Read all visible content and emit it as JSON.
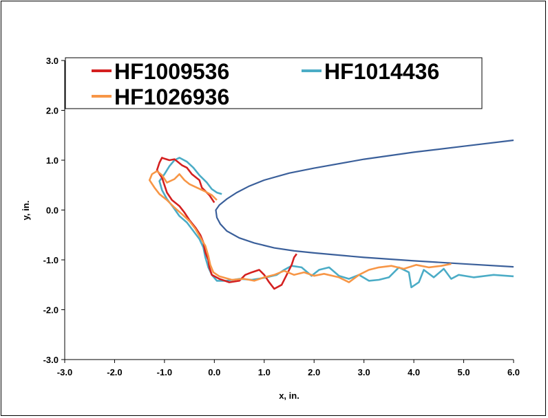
{
  "chart_data": {
    "type": "line",
    "xlabel": "x, in.",
    "ylabel": "y, in.",
    "xlim": [
      -3.0,
      6.0
    ],
    "ylim": [
      -3.0,
      3.0
    ],
    "xticks": [
      "-3.0",
      "-2.0",
      "-1.0",
      "0.0",
      "1.0",
      "2.0",
      "3.0",
      "4.0",
      "5.0",
      "6.0"
    ],
    "yticks": [
      "-3.0",
      "-2.0",
      "-1.0",
      "0.0",
      "1.0",
      "2.0",
      "3.0"
    ],
    "grid": false,
    "legend_position": "top",
    "series": [
      {
        "name": "HF1009536",
        "color": "#d42020",
        "points": [
          [
            0.0,
            0.15
          ],
          [
            -0.1,
            0.3
          ],
          [
            -0.25,
            0.45
          ],
          [
            -0.3,
            0.6
          ],
          [
            -0.45,
            0.72
          ],
          [
            -0.55,
            0.85
          ],
          [
            -0.65,
            0.9
          ],
          [
            -0.75,
            0.98
          ],
          [
            -0.8,
            1.02
          ],
          [
            -0.9,
            1.0
          ],
          [
            -1.0,
            1.03
          ],
          [
            -1.05,
            1.05
          ],
          [
            -1.1,
            0.95
          ],
          [
            -1.15,
            0.8
          ],
          [
            -1.05,
            0.65
          ],
          [
            -1.0,
            0.5
          ],
          [
            -0.95,
            0.35
          ],
          [
            -0.85,
            0.2
          ],
          [
            -0.7,
            0.08
          ],
          [
            -0.6,
            -0.05
          ],
          [
            -0.5,
            -0.2
          ],
          [
            -0.38,
            -0.35
          ],
          [
            -0.28,
            -0.5
          ],
          [
            -0.22,
            -0.65
          ],
          [
            -0.18,
            -0.85
          ],
          [
            -0.12,
            -1.0
          ],
          [
            -0.1,
            -1.15
          ],
          [
            -0.05,
            -1.3
          ],
          [
            0.1,
            -1.38
          ],
          [
            0.3,
            -1.45
          ],
          [
            0.5,
            -1.42
          ],
          [
            0.62,
            -1.3
          ],
          [
            0.75,
            -1.25
          ],
          [
            0.9,
            -1.2
          ],
          [
            1.0,
            -1.3
          ],
          [
            1.1,
            -1.45
          ],
          [
            1.2,
            -1.58
          ],
          [
            1.35,
            -1.5
          ],
          [
            1.45,
            -1.3
          ],
          [
            1.55,
            -1.1
          ],
          [
            1.6,
            -0.95
          ],
          [
            1.65,
            -0.88
          ]
        ]
      },
      {
        "name": "HF1014436",
        "color": "#4bacc6",
        "points": [
          [
            0.15,
            0.32
          ],
          [
            0.05,
            0.35
          ],
          [
            -0.05,
            0.42
          ],
          [
            -0.15,
            0.55
          ],
          [
            -0.3,
            0.7
          ],
          [
            -0.42,
            0.85
          ],
          [
            -0.55,
            0.97
          ],
          [
            -0.7,
            1.05
          ],
          [
            -0.8,
            1.0
          ],
          [
            -0.9,
            0.88
          ],
          [
            -1.0,
            0.72
          ],
          [
            -1.1,
            0.58
          ],
          [
            -1.05,
            0.4
          ],
          [
            -0.95,
            0.22
          ],
          [
            -0.82,
            0.05
          ],
          [
            -0.7,
            -0.12
          ],
          [
            -0.55,
            -0.25
          ],
          [
            -0.42,
            -0.42
          ],
          [
            -0.3,
            -0.58
          ],
          [
            -0.22,
            -0.75
          ],
          [
            -0.18,
            -0.95
          ],
          [
            -0.12,
            -1.15
          ],
          [
            -0.05,
            -1.3
          ],
          [
            0.05,
            -1.42
          ],
          [
            0.25,
            -1.42
          ],
          [
            0.5,
            -1.38
          ],
          [
            0.75,
            -1.4
          ],
          [
            1.0,
            -1.36
          ],
          [
            1.25,
            -1.3
          ],
          [
            1.4,
            -1.2
          ],
          [
            1.55,
            -1.12
          ],
          [
            1.75,
            -1.15
          ],
          [
            1.95,
            -1.32
          ],
          [
            2.1,
            -1.2
          ],
          [
            2.3,
            -1.15
          ],
          [
            2.5,
            -1.32
          ],
          [
            2.7,
            -1.38
          ],
          [
            2.9,
            -1.3
          ],
          [
            3.1,
            -1.42
          ],
          [
            3.3,
            -1.4
          ],
          [
            3.5,
            -1.35
          ],
          [
            3.7,
            -1.15
          ],
          [
            3.9,
            -1.25
          ],
          [
            3.95,
            -1.55
          ],
          [
            4.1,
            -1.45
          ],
          [
            4.2,
            -1.2
          ],
          [
            4.4,
            -1.35
          ],
          [
            4.6,
            -1.18
          ],
          [
            4.75,
            -1.38
          ],
          [
            4.9,
            -1.3
          ],
          [
            5.2,
            -1.35
          ],
          [
            5.6,
            -1.3
          ],
          [
            6.0,
            -1.33
          ]
        ]
      },
      {
        "name": "HF1026936",
        "color": "#f79646",
        "points": [
          [
            0.05,
            0.2
          ],
          [
            -0.05,
            0.3
          ],
          [
            -0.2,
            0.38
          ],
          [
            -0.35,
            0.45
          ],
          [
            -0.5,
            0.52
          ],
          [
            -0.6,
            0.6
          ],
          [
            -0.7,
            0.72
          ],
          [
            -0.8,
            0.62
          ],
          [
            -0.95,
            0.55
          ],
          [
            -1.05,
            0.7
          ],
          [
            -1.15,
            0.78
          ],
          [
            -1.25,
            0.72
          ],
          [
            -1.3,
            0.6
          ],
          [
            -1.2,
            0.45
          ],
          [
            -1.1,
            0.32
          ],
          [
            -0.95,
            0.2
          ],
          [
            -0.8,
            0.05
          ],
          [
            -0.65,
            -0.08
          ],
          [
            -0.5,
            -0.22
          ],
          [
            -0.38,
            -0.38
          ],
          [
            -0.28,
            -0.55
          ],
          [
            -0.18,
            -0.72
          ],
          [
            -0.12,
            -0.92
          ],
          [
            -0.08,
            -1.1
          ],
          [
            -0.02,
            -1.25
          ],
          [
            0.1,
            -1.33
          ],
          [
            0.35,
            -1.4
          ],
          [
            0.6,
            -1.38
          ],
          [
            0.8,
            -1.42
          ],
          [
            1.0,
            -1.35
          ],
          [
            1.2,
            -1.3
          ],
          [
            1.4,
            -1.22
          ],
          [
            1.6,
            -1.3
          ],
          [
            1.8,
            -1.25
          ],
          [
            2.0,
            -1.32
          ],
          [
            2.2,
            -1.28
          ],
          [
            2.5,
            -1.35
          ],
          [
            2.7,
            -1.45
          ],
          [
            2.9,
            -1.3
          ],
          [
            3.1,
            -1.2
          ],
          [
            3.3,
            -1.15
          ],
          [
            3.55,
            -1.12
          ],
          [
            3.8,
            -1.18
          ],
          [
            4.05,
            -1.1
          ],
          [
            4.3,
            -1.15
          ],
          [
            4.55,
            -1.12
          ],
          [
            4.75,
            -1.08
          ]
        ]
      }
    ],
    "reference_curve": {
      "color": "#3a5f9a",
      "points": [
        [
          6.0,
          1.4
        ],
        [
          5.0,
          1.28
        ],
        [
          4.0,
          1.16
        ],
        [
          3.0,
          1.02
        ],
        [
          2.0,
          0.84
        ],
        [
          1.5,
          0.74
        ],
        [
          1.0,
          0.6
        ],
        [
          0.7,
          0.48
        ],
        [
          0.45,
          0.35
        ],
        [
          0.25,
          0.22
        ],
        [
          0.1,
          0.1
        ],
        [
          0.03,
          0.0
        ],
        [
          0.05,
          -0.15
        ],
        [
          0.12,
          -0.28
        ],
        [
          0.25,
          -0.42
        ],
        [
          0.5,
          -0.56
        ],
        [
          0.8,
          -0.66
        ],
        [
          1.2,
          -0.76
        ],
        [
          1.6,
          -0.82
        ],
        [
          2.0,
          -0.86
        ],
        [
          3.0,
          -0.95
        ],
        [
          4.0,
          -1.02
        ],
        [
          5.0,
          -1.08
        ],
        [
          6.0,
          -1.14
        ]
      ]
    }
  }
}
